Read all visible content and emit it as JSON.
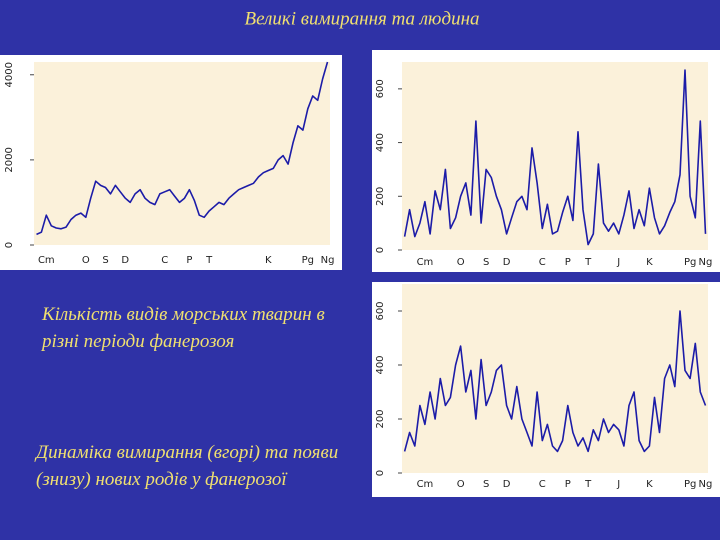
{
  "title": "Великі вимирання та людина",
  "captions": [
    "Кількість видів морських тварин в різні періоди фанерозоя",
    "Динаміка вимирання (вгорі) та появи (знизу) нових родів у фанерозої"
  ],
  "chart_data": [
    {
      "type": "line",
      "color": "#1c1ca8",
      "categories": [
        null,
        null,
        "Cm",
        null,
        null,
        null,
        null,
        null,
        null,
        null,
        "O",
        null,
        null,
        null,
        "S",
        null,
        null,
        null,
        "D",
        null,
        null,
        null,
        null,
        null,
        null,
        null,
        "C",
        null,
        null,
        null,
        null,
        "P",
        null,
        null,
        null,
        "T",
        null,
        null,
        null,
        null,
        null,
        null,
        null,
        null,
        null,
        null,
        null,
        "K",
        null,
        null,
        null,
        null,
        null,
        null,
        null,
        "Pg",
        null,
        null,
        null,
        "Ng"
      ],
      "values": [
        250,
        300,
        700,
        450,
        400,
        380,
        420,
        600,
        700,
        750,
        650,
        1100,
        1500,
        1400,
        1350,
        1200,
        1400,
        1250,
        1100,
        1000,
        1200,
        1300,
        1100,
        1000,
        950,
        1200,
        1250,
        1300,
        1150,
        1000,
        1100,
        1300,
        1050,
        700,
        650,
        800,
        900,
        1000,
        950,
        1100,
        1200,
        1300,
        1350,
        1400,
        1450,
        1600,
        1700,
        1750,
        1800,
        2000,
        2100,
        1900,
        2400,
        2800,
        2700,
        3200,
        3500,
        3400,
        3900,
        4300
      ],
      "ylim": [
        0,
        4300
      ],
      "yticks": [
        0,
        2000,
        4000
      ]
    },
    {
      "type": "line",
      "color": "#1c1ca8",
      "categories": [
        null,
        null,
        null,
        null,
        "Cm",
        null,
        null,
        null,
        null,
        null,
        null,
        "O",
        null,
        null,
        null,
        null,
        "S",
        null,
        null,
        null,
        "D",
        null,
        null,
        null,
        null,
        null,
        null,
        "C",
        null,
        null,
        null,
        null,
        "P",
        null,
        null,
        null,
        "T",
        null,
        null,
        null,
        null,
        null,
        "J",
        null,
        null,
        null,
        null,
        null,
        "K",
        null,
        null,
        null,
        null,
        null,
        null,
        null,
        "Pg",
        null,
        null,
        "Ng"
      ],
      "values": [
        50,
        150,
        50,
        100,
        180,
        60,
        220,
        150,
        300,
        80,
        120,
        200,
        250,
        130,
        480,
        100,
        300,
        270,
        200,
        150,
        60,
        120,
        180,
        200,
        150,
        380,
        250,
        80,
        170,
        60,
        70,
        140,
        200,
        110,
        440,
        150,
        20,
        60,
        320,
        100,
        70,
        100,
        60,
        130,
        220,
        80,
        150,
        90,
        230,
        120,
        60,
        90,
        140,
        180,
        280,
        670,
        200,
        120,
        480,
        60
      ],
      "ylim": [
        0,
        700
      ],
      "yticks": [
        0,
        200,
        400,
        600
      ]
    },
    {
      "type": "line",
      "color": "#1c1ca8",
      "categories": [
        null,
        null,
        null,
        null,
        "Cm",
        null,
        null,
        null,
        null,
        null,
        null,
        "O",
        null,
        null,
        null,
        null,
        "S",
        null,
        null,
        null,
        "D",
        null,
        null,
        null,
        null,
        null,
        null,
        "C",
        null,
        null,
        null,
        null,
        "P",
        null,
        null,
        null,
        "T",
        null,
        null,
        null,
        null,
        null,
        "J",
        null,
        null,
        null,
        null,
        null,
        "K",
        null,
        null,
        null,
        null,
        null,
        null,
        null,
        "Pg",
        null,
        null,
        "Ng"
      ],
      "values": [
        80,
        150,
        100,
        250,
        180,
        300,
        200,
        350,
        250,
        280,
        400,
        470,
        300,
        380,
        200,
        420,
        250,
        300,
        380,
        400,
        250,
        200,
        320,
        200,
        150,
        100,
        300,
        120,
        180,
        100,
        80,
        120,
        250,
        150,
        100,
        130,
        80,
        160,
        120,
        200,
        150,
        180,
        160,
        100,
        250,
        300,
        120,
        80,
        100,
        280,
        150,
        350,
        400,
        320,
        600,
        380,
        350,
        480,
        300,
        250
      ],
      "ylim": [
        0,
        700
      ],
      "yticks": [
        0,
        200,
        400,
        600
      ]
    }
  ]
}
